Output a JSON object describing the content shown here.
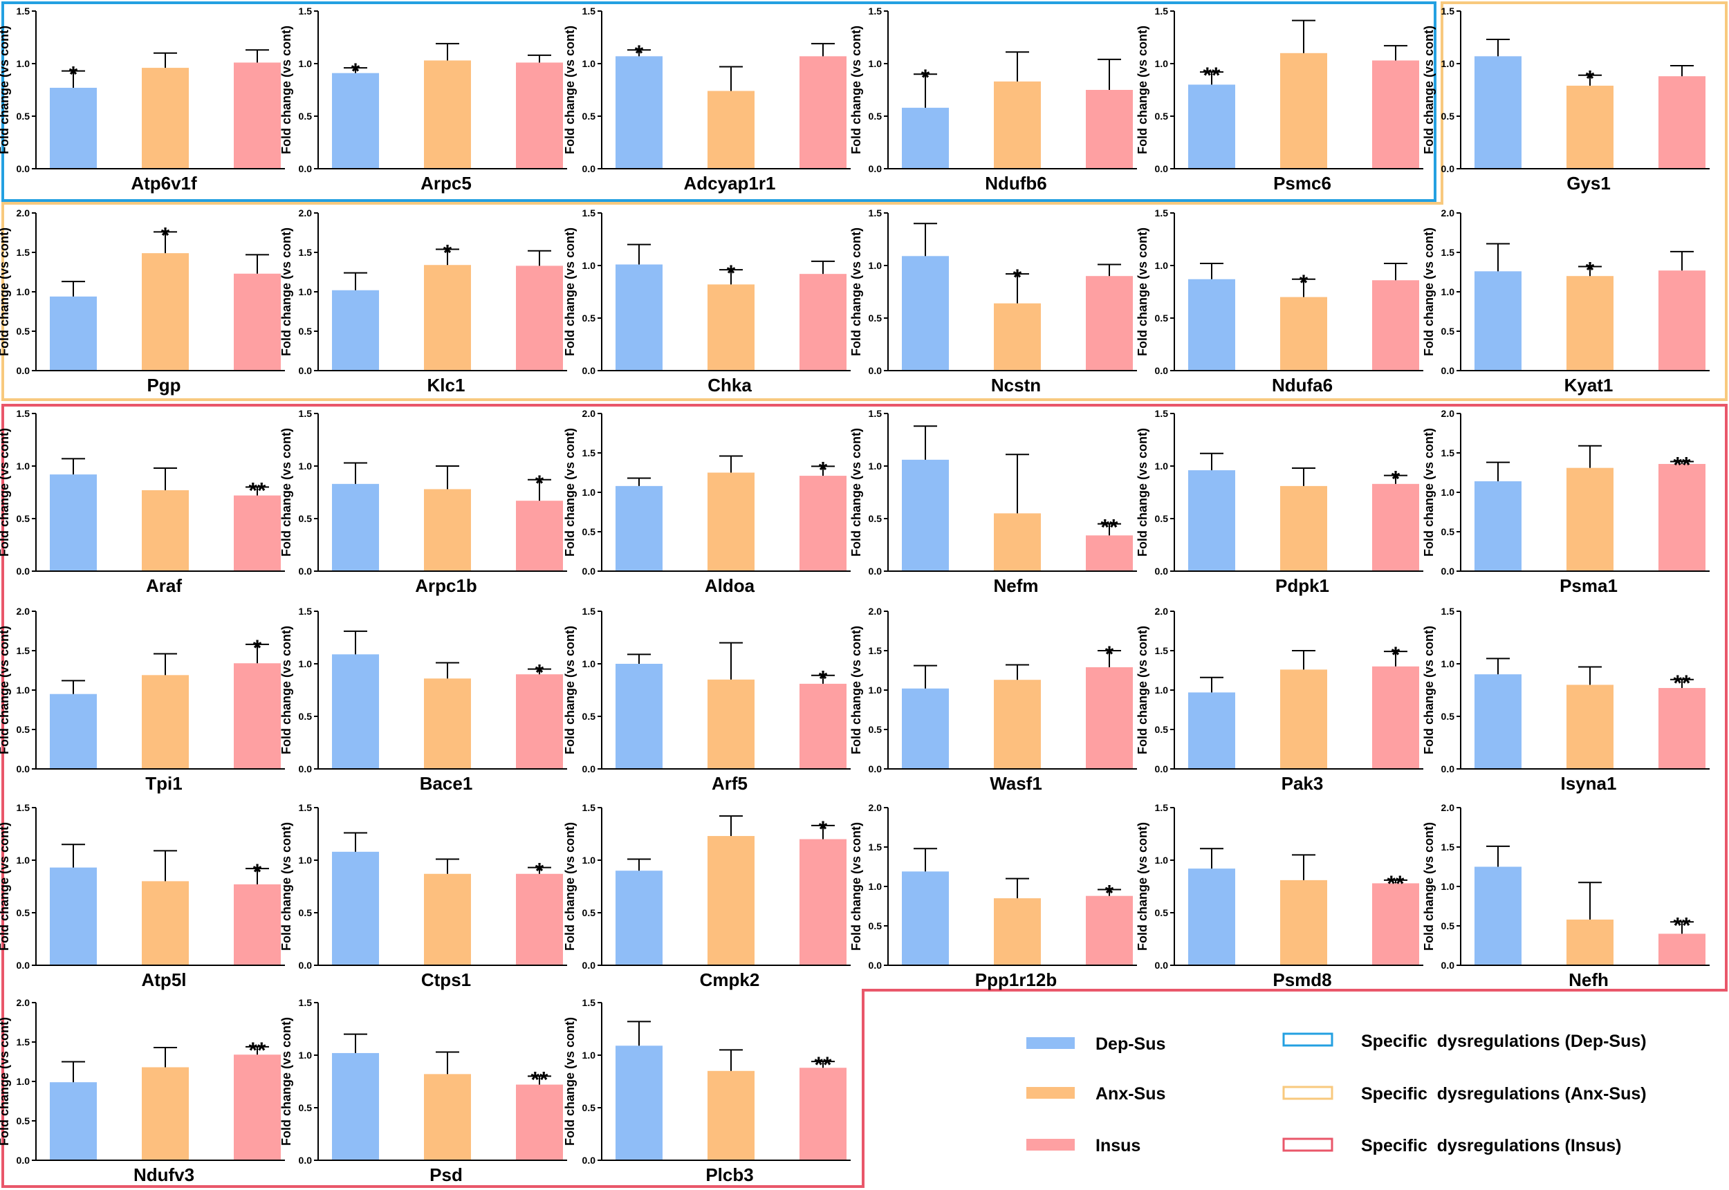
{
  "colors": {
    "dep_sus": "#8fbdf7",
    "anx_sus": "#fdbf7e",
    "insus": "#fea0a2",
    "group_dep_border": "#24a0e1",
    "group_anx_border": "#f8c97e",
    "group_insus_border": "#e9576a"
  },
  "legend": {
    "series": [
      {
        "label": "Dep-Sus",
        "color": "#8fbdf7"
      },
      {
        "label": "Anx-Sus",
        "color": "#fdbf7e"
      },
      {
        "label": "Insus",
        "color": "#fea0a2"
      }
    ],
    "groups": [
      {
        "label": "Specific  dysregulations (Dep-Sus)",
        "color": "#24a0e1"
      },
      {
        "label": "Specific  dysregulations (Anx-Sus)",
        "color": "#f8c97e"
      },
      {
        "label": "Specific  dysregulations (Insus)",
        "color": "#e9576a"
      }
    ]
  },
  "chart_data": [
    {
      "type": "bar",
      "title": "Atp6v1f",
      "ylabel": "Fold change (vs cont)",
      "categories": [
        "Dep-Sus",
        "Anx-Sus",
        "Insus"
      ],
      "values": [
        0.77,
        0.96,
        1.01
      ],
      "errors": [
        0.16,
        0.14,
        0.12
      ],
      "sig": [
        "*",
        "",
        ""
      ],
      "ylim": [
        0,
        1.5
      ],
      "yticks": [
        "0.0",
        "0.5",
        "1.0",
        "1.5"
      ],
      "group": "Dep-Sus"
    },
    {
      "type": "bar",
      "title": "Arpc5",
      "ylabel": "Fold change (vs cont)",
      "categories": [
        "Dep-Sus",
        "Anx-Sus",
        "Insus"
      ],
      "values": [
        0.91,
        1.03,
        1.01
      ],
      "errors": [
        0.05,
        0.16,
        0.07
      ],
      "sig": [
        "*",
        "",
        ""
      ],
      "ylim": [
        0,
        1.5
      ],
      "yticks": [
        "0.0",
        "0.5",
        "1.0",
        "1.5"
      ],
      "group": "Dep-Sus"
    },
    {
      "type": "bar",
      "title": "Adcyap1r1",
      "ylabel": "Fold change (vs cont)",
      "categories": [
        "Dep-Sus",
        "Anx-Sus",
        "Insus"
      ],
      "values": [
        1.07,
        0.74,
        1.07
      ],
      "errors": [
        0.06,
        0.23,
        0.12
      ],
      "sig": [
        "*",
        "",
        ""
      ],
      "ylim": [
        0,
        1.5
      ],
      "yticks": [
        "0.0",
        "0.5",
        "1.0",
        "1.5"
      ],
      "group": "Dep-Sus"
    },
    {
      "type": "bar",
      "title": "Ndufb6",
      "ylabel": "Fold change (vs cont)",
      "categories": [
        "Dep-Sus",
        "Anx-Sus",
        "Insus"
      ],
      "values": [
        0.58,
        0.83,
        0.75
      ],
      "errors": [
        0.32,
        0.28,
        0.29
      ],
      "sig": [
        "*",
        "",
        ""
      ],
      "ylim": [
        0,
        1.5
      ],
      "yticks": [
        "0.0",
        "0.5",
        "1.0",
        "1.5"
      ],
      "group": "Dep-Sus"
    },
    {
      "type": "bar",
      "title": "Psmc6",
      "ylabel": "Fold change (vs cont)",
      "categories": [
        "Dep-Sus",
        "Anx-Sus",
        "Insus"
      ],
      "values": [
        0.8,
        1.1,
        1.03
      ],
      "errors": [
        0.12,
        0.31,
        0.14
      ],
      "sig": [
        "**",
        "",
        ""
      ],
      "ylim": [
        0,
        1.5
      ],
      "yticks": [
        "0.0",
        "0.5",
        "1.0",
        "1.5"
      ],
      "group": "Dep-Sus"
    },
    {
      "type": "bar",
      "title": "Gys1",
      "ylabel": "Fold change (vs cont)",
      "categories": [
        "Dep-Sus",
        "Anx-Sus",
        "Insus"
      ],
      "values": [
        1.07,
        0.79,
        0.88
      ],
      "errors": [
        0.16,
        0.1,
        0.1
      ],
      "sig": [
        "",
        "*",
        ""
      ],
      "ylim": [
        0,
        1.5
      ],
      "yticks": [
        "0.0",
        "0.5",
        "1.0",
        "1.5"
      ],
      "group": "Anx-Sus"
    },
    {
      "type": "bar",
      "title": "Pgp",
      "ylabel": "Fold change (vs cont)",
      "categories": [
        "Dep-Sus",
        "Anx-Sus",
        "Insus"
      ],
      "values": [
        0.94,
        1.49,
        1.23
      ],
      "errors": [
        0.19,
        0.27,
        0.24
      ],
      "sig": [
        "",
        "*",
        ""
      ],
      "ylim": [
        0,
        2.0
      ],
      "yticks": [
        "0.0",
        "0.5",
        "1.0",
        "1.5",
        "2.0"
      ],
      "group": "Anx-Sus"
    },
    {
      "type": "bar",
      "title": "Klc1",
      "ylabel": "Fold change (vs cont)",
      "categories": [
        "Dep-Sus",
        "Anx-Sus",
        "Insus"
      ],
      "values": [
        1.02,
        1.34,
        1.33
      ],
      "errors": [
        0.22,
        0.2,
        0.19
      ],
      "sig": [
        "",
        "*",
        ""
      ],
      "ylim": [
        0,
        2.0
      ],
      "yticks": [
        "0.0",
        "0.5",
        "1.0",
        "1.5",
        "2.0"
      ],
      "group": "Anx-Sus"
    },
    {
      "type": "bar",
      "title": "Chka",
      "ylabel": "Fold change (vs cont)",
      "categories": [
        "Dep-Sus",
        "Anx-Sus",
        "Insus"
      ],
      "values": [
        1.01,
        0.82,
        0.92
      ],
      "errors": [
        0.19,
        0.14,
        0.12
      ],
      "sig": [
        "",
        "*",
        ""
      ],
      "ylim": [
        0,
        1.5
      ],
      "yticks": [
        "0.0",
        "0.5",
        "1.0",
        "1.5"
      ],
      "group": "Anx-Sus"
    },
    {
      "type": "bar",
      "title": "Ncstn",
      "ylabel": "Fold change (vs cont)",
      "categories": [
        "Dep-Sus",
        "Anx-Sus",
        "Insus"
      ],
      "values": [
        1.09,
        0.64,
        0.9
      ],
      "errors": [
        0.31,
        0.28,
        0.11
      ],
      "sig": [
        "",
        "*",
        ""
      ],
      "ylim": [
        0,
        1.5
      ],
      "yticks": [
        "0.0",
        "0.5",
        "1.0",
        "1.5"
      ],
      "group": "Anx-Sus"
    },
    {
      "type": "bar",
      "title": "Ndufa6",
      "ylabel": "Fold change (vs cont)",
      "categories": [
        "Dep-Sus",
        "Anx-Sus",
        "Insus"
      ],
      "values": [
        0.87,
        0.7,
        0.86
      ],
      "errors": [
        0.15,
        0.17,
        0.16
      ],
      "sig": [
        "",
        "*",
        ""
      ],
      "ylim": [
        0,
        1.5
      ],
      "yticks": [
        "0.0",
        "0.5",
        "1.0",
        "1.5"
      ],
      "group": "Anx-Sus"
    },
    {
      "type": "bar",
      "title": "Kyat1",
      "ylabel": "Fold change (vs cont)",
      "categories": [
        "Dep-Sus",
        "Anx-Sus",
        "Insus"
      ],
      "values": [
        1.26,
        1.2,
        1.27
      ],
      "errors": [
        0.35,
        0.12,
        0.24
      ],
      "sig": [
        "",
        "*",
        ""
      ],
      "ylim": [
        0,
        2.0
      ],
      "yticks": [
        "0.0",
        "0.5",
        "1.0",
        "1.5",
        "2.0"
      ],
      "group": "Anx-Sus"
    },
    {
      "type": "bar",
      "title": "Araf",
      "ylabel": "Fold change (vs cont)",
      "categories": [
        "Dep-Sus",
        "Anx-Sus",
        "Insus"
      ],
      "values": [
        0.92,
        0.77,
        0.72
      ],
      "errors": [
        0.15,
        0.21,
        0.08
      ],
      "sig": [
        "",
        "",
        "**"
      ],
      "ylim": [
        0,
        1.5
      ],
      "yticks": [
        "0.0",
        "0.5",
        "1.0",
        "1.5"
      ],
      "group": "Insus"
    },
    {
      "type": "bar",
      "title": "Arpc1b",
      "ylabel": "Fold change (vs cont)",
      "categories": [
        "Dep-Sus",
        "Anx-Sus",
        "Insus"
      ],
      "values": [
        0.83,
        0.78,
        0.67
      ],
      "errors": [
        0.2,
        0.22,
        0.2
      ],
      "sig": [
        "",
        "",
        "*"
      ],
      "ylim": [
        0,
        1.5
      ],
      "yticks": [
        "0.0",
        "0.5",
        "1.0",
        "1.5"
      ],
      "group": "Insus"
    },
    {
      "type": "bar",
      "title": "Aldoa",
      "ylabel": "Fold change (vs cont)",
      "categories": [
        "Dep-Sus",
        "Anx-Sus",
        "Insus"
      ],
      "values": [
        1.08,
        1.25,
        1.21
      ],
      "errors": [
        0.1,
        0.21,
        0.12
      ],
      "sig": [
        "",
        "",
        "*"
      ],
      "ylim": [
        0,
        2.0
      ],
      "yticks": [
        "0.0",
        "0.5",
        "1.0",
        "1.5",
        "2.0"
      ],
      "group": "Insus"
    },
    {
      "type": "bar",
      "title": "Nefm",
      "ylabel": "Fold change (vs cont)",
      "categories": [
        "Dep-Sus",
        "Anx-Sus",
        "Insus"
      ],
      "values": [
        1.06,
        0.55,
        0.34
      ],
      "errors": [
        0.32,
        0.56,
        0.11
      ],
      "sig": [
        "",
        "",
        "**"
      ],
      "ylim": [
        0,
        1.5
      ],
      "yticks": [
        "0.0",
        "0.5",
        "1.0",
        "1.5"
      ],
      "group": "Insus"
    },
    {
      "type": "bar",
      "title": "Pdpk1",
      "ylabel": "Fold change (vs cont)",
      "categories": [
        "Dep-Sus",
        "Anx-Sus",
        "Insus"
      ],
      "values": [
        0.96,
        0.81,
        0.83
      ],
      "errors": [
        0.16,
        0.17,
        0.08
      ],
      "sig": [
        "",
        "",
        "*"
      ],
      "ylim": [
        0,
        1.5
      ],
      "yticks": [
        "0.0",
        "0.5",
        "1.0",
        "1.5"
      ],
      "group": "Insus"
    },
    {
      "type": "bar",
      "title": "Psma1",
      "ylabel": "Fold change (vs cont)",
      "categories": [
        "Dep-Sus",
        "Anx-Sus",
        "Insus"
      ],
      "values": [
        1.14,
        1.31,
        1.36
      ],
      "errors": [
        0.24,
        0.28,
        0.03
      ],
      "sig": [
        "",
        "",
        "**"
      ],
      "ylim": [
        0,
        2.0
      ],
      "yticks": [
        "0.0",
        "0.5",
        "1.0",
        "1.5",
        "2.0"
      ],
      "group": "Insus"
    },
    {
      "type": "bar",
      "title": "Tpi1",
      "ylabel": "Fold change (vs cont)",
      "categories": [
        "Dep-Sus",
        "Anx-Sus",
        "Insus"
      ],
      "values": [
        0.95,
        1.19,
        1.34
      ],
      "errors": [
        0.17,
        0.27,
        0.24
      ],
      "sig": [
        "",
        "",
        "*"
      ],
      "ylim": [
        0,
        2.0
      ],
      "yticks": [
        "0.0",
        "0.5",
        "1.0",
        "1.5",
        "2.0"
      ],
      "group": "Insus"
    },
    {
      "type": "bar",
      "title": "Bace1",
      "ylabel": "Fold change (vs cont)",
      "categories": [
        "Dep-Sus",
        "Anx-Sus",
        "Insus"
      ],
      "values": [
        1.09,
        0.86,
        0.9
      ],
      "errors": [
        0.22,
        0.15,
        0.05
      ],
      "sig": [
        "",
        "",
        "*"
      ],
      "ylim": [
        0,
        1.5
      ],
      "yticks": [
        "0.0",
        "0.5",
        "1.0",
        "1.5"
      ],
      "group": "Insus"
    },
    {
      "type": "bar",
      "title": "Arf5",
      "ylabel": "Fold change (vs cont)",
      "categories": [
        "Dep-Sus",
        "Anx-Sus",
        "Insus"
      ],
      "values": [
        1.0,
        0.85,
        0.81
      ],
      "errors": [
        0.09,
        0.35,
        0.08
      ],
      "sig": [
        "",
        "",
        "*"
      ],
      "ylim": [
        0,
        1.5
      ],
      "yticks": [
        "0.0",
        "0.5",
        "1.0",
        "1.5"
      ],
      "group": "Insus"
    },
    {
      "type": "bar",
      "title": "Wasf1",
      "ylabel": "Fold change (vs cont)",
      "categories": [
        "Dep-Sus",
        "Anx-Sus",
        "Insus"
      ],
      "values": [
        1.02,
        1.13,
        1.29
      ],
      "errors": [
        0.29,
        0.19,
        0.21
      ],
      "sig": [
        "",
        "",
        "*"
      ],
      "ylim": [
        0,
        2.0
      ],
      "yticks": [
        "0.0",
        "0.5",
        "1.0",
        "1.5",
        "2.0"
      ],
      "group": "Insus"
    },
    {
      "type": "bar",
      "title": "Pak3",
      "ylabel": "Fold change (vs cont)",
      "categories": [
        "Dep-Sus",
        "Anx-Sus",
        "Insus"
      ],
      "values": [
        0.97,
        1.26,
        1.3
      ],
      "errors": [
        0.19,
        0.24,
        0.19
      ],
      "sig": [
        "",
        "",
        "*"
      ],
      "ylim": [
        0,
        2.0
      ],
      "yticks": [
        "0.0",
        "0.5",
        "1.0",
        "1.5",
        "2.0"
      ],
      "group": "Insus"
    },
    {
      "type": "bar",
      "title": "Isyna1",
      "ylabel": "Fold change (vs cont)",
      "categories": [
        "Dep-Sus",
        "Anx-Sus",
        "Insus"
      ],
      "values": [
        0.9,
        0.8,
        0.77
      ],
      "errors": [
        0.15,
        0.17,
        0.08
      ],
      "sig": [
        "",
        "",
        "**"
      ],
      "ylim": [
        0,
        1.5
      ],
      "yticks": [
        "0.0",
        "0.5",
        "1.0",
        "1.5"
      ],
      "group": "Insus"
    },
    {
      "type": "bar",
      "title": "Atp5l",
      "ylabel": "Fold change (vs cont)",
      "categories": [
        "Dep-Sus",
        "Anx-Sus",
        "Insus"
      ],
      "values": [
        0.93,
        0.8,
        0.77
      ],
      "errors": [
        0.22,
        0.29,
        0.15
      ],
      "sig": [
        "",
        "",
        "*"
      ],
      "ylim": [
        0,
        1.5
      ],
      "yticks": [
        "0.0",
        "0.5",
        "1.0",
        "1.5"
      ],
      "group": "Insus"
    },
    {
      "type": "bar",
      "title": "Ctps1",
      "ylabel": "Fold change (vs cont)",
      "categories": [
        "Dep-Sus",
        "Anx-Sus",
        "Insus"
      ],
      "values": [
        1.08,
        0.87,
        0.87
      ],
      "errors": [
        0.18,
        0.14,
        0.06
      ],
      "sig": [
        "",
        "",
        "*"
      ],
      "ylim": [
        0,
        1.5
      ],
      "yticks": [
        "0.0",
        "0.5",
        "1.0",
        "1.5"
      ],
      "group": "Insus"
    },
    {
      "type": "bar",
      "title": "Cmpk2",
      "ylabel": "Fold change (vs cont)",
      "categories": [
        "Dep-Sus",
        "Anx-Sus",
        "Insus"
      ],
      "values": [
        0.9,
        1.23,
        1.2
      ],
      "errors": [
        0.11,
        0.19,
        0.13
      ],
      "sig": [
        "",
        "",
        "*"
      ],
      "ylim": [
        0,
        1.5
      ],
      "yticks": [
        "0.0",
        "0.5",
        "1.0",
        "1.5"
      ],
      "group": "Insus"
    },
    {
      "type": "bar",
      "title": "Ppp1r12b",
      "ylabel": "Fold change (vs cont)",
      "categories": [
        "Dep-Sus",
        "Anx-Sus",
        "Insus"
      ],
      "values": [
        1.19,
        0.85,
        0.88
      ],
      "errors": [
        0.29,
        0.25,
        0.08
      ],
      "sig": [
        "",
        "",
        "*"
      ],
      "ylim": [
        0,
        2.0
      ],
      "yticks": [
        "0.0",
        "0.5",
        "1.0",
        "1.5",
        "2.0"
      ],
      "group": "Insus"
    },
    {
      "type": "bar",
      "title": "Psmd8",
      "ylabel": "Fold change (vs cont)",
      "categories": [
        "Dep-Sus",
        "Anx-Sus",
        "Insus"
      ],
      "values": [
        0.92,
        0.81,
        0.78
      ],
      "errors": [
        0.19,
        0.24,
        0.03
      ],
      "sig": [
        "",
        "",
        "**"
      ],
      "ylim": [
        0,
        1.5
      ],
      "yticks": [
        "0.0",
        "0.5",
        "1.0",
        "1.5"
      ],
      "group": "Insus"
    },
    {
      "type": "bar",
      "title": "Nefh",
      "ylabel": "Fold change (vs cont)",
      "categories": [
        "Dep-Sus",
        "Anx-Sus",
        "Insus"
      ],
      "values": [
        1.25,
        0.58,
        0.4
      ],
      "errors": [
        0.26,
        0.47,
        0.15
      ],
      "sig": [
        "",
        "",
        "**"
      ],
      "ylim": [
        0,
        2.0
      ],
      "yticks": [
        "0.0",
        "0.5",
        "1.0",
        "1.5",
        "2.0"
      ],
      "group": "Insus"
    },
    {
      "type": "bar",
      "title": "Ndufv3",
      "ylabel": "Fold change (vs cont)",
      "categories": [
        "Dep-Sus",
        "Anx-Sus",
        "Insus"
      ],
      "values": [
        0.99,
        1.18,
        1.34
      ],
      "errors": [
        0.26,
        0.25,
        0.1
      ],
      "sig": [
        "",
        "",
        "**"
      ],
      "ylim": [
        0,
        2.0
      ],
      "yticks": [
        "0.0",
        "0.5",
        "1.0",
        "1.5",
        "2.0"
      ],
      "group": "Insus"
    },
    {
      "type": "bar",
      "title": "Psd",
      "ylabel": "Fold change (vs cont)",
      "categories": [
        "Dep-Sus",
        "Anx-Sus",
        "Insus"
      ],
      "values": [
        1.02,
        0.82,
        0.72
      ],
      "errors": [
        0.18,
        0.21,
        0.08
      ],
      "sig": [
        "",
        "",
        "**"
      ],
      "ylim": [
        0,
        1.5
      ],
      "yticks": [
        "0.0",
        "0.5",
        "1.0",
        "1.5"
      ],
      "group": "Insus"
    },
    {
      "type": "bar",
      "title": "Plcb3",
      "ylabel": "Fold change (vs cont)",
      "categories": [
        "Dep-Sus",
        "Anx-Sus",
        "Insus"
      ],
      "values": [
        1.09,
        0.85,
        0.88
      ],
      "errors": [
        0.23,
        0.2,
        0.06
      ],
      "sig": [
        "",
        "",
        "**"
      ],
      "ylim": [
        0,
        1.5
      ],
      "yticks": [
        "0.0",
        "0.5",
        "1.0",
        "1.5"
      ],
      "group": "Insus"
    }
  ]
}
